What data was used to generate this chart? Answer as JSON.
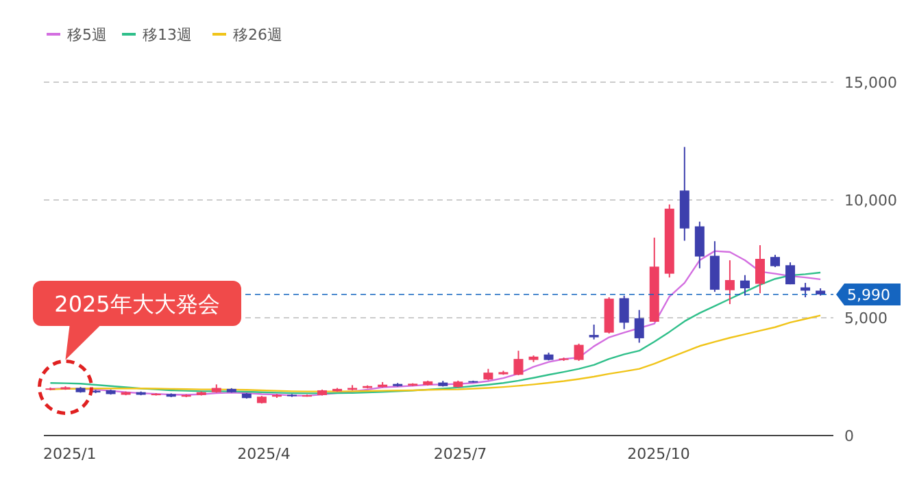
{
  "chart_data": {
    "type": "candlestick",
    "x": [
      "2024-12-23",
      "2024-12-30",
      "2025-01-06",
      "2025-01-13",
      "2025-01-20",
      "2025-01-27",
      "2025-02-03",
      "2025-02-10",
      "2025-02-17",
      "2025-02-24",
      "2025-03-03",
      "2025-03-10",
      "2025-03-17",
      "2025-03-24",
      "2025-03-31",
      "2025-04-07",
      "2025-04-14",
      "2025-04-21",
      "2025-04-28",
      "2025-05-05",
      "2025-05-12",
      "2025-05-19",
      "2025-05-26",
      "2025-06-02",
      "2025-06-09",
      "2025-06-16",
      "2025-06-23",
      "2025-06-30",
      "2025-07-07",
      "2025-07-14",
      "2025-07-21",
      "2025-07-28",
      "2025-08-04",
      "2025-08-11",
      "2025-08-18",
      "2025-08-25",
      "2025-09-01",
      "2025-09-08",
      "2025-09-15",
      "2025-09-22",
      "2025-09-29",
      "2025-10-06",
      "2025-10-13",
      "2025-10-20",
      "2025-10-27",
      "2025-11-03",
      "2025-11-10",
      "2025-11-17",
      "2025-11-24",
      "2025-12-01",
      "2025-12-08",
      "2025-12-15"
    ],
    "ohlc": [
      [
        1950,
        2040,
        1920,
        2000
      ],
      [
        1960,
        2090,
        1940,
        2050
      ],
      [
        2020,
        2060,
        1820,
        1840
      ],
      [
        1900,
        1940,
        1800,
        1830
      ],
      [
        1920,
        1950,
        1740,
        1760
      ],
      [
        1730,
        1870,
        1710,
        1840
      ],
      [
        1840,
        1870,
        1710,
        1730
      ],
      [
        1740,
        1800,
        1700,
        1770
      ],
      [
        1760,
        1790,
        1630,
        1650
      ],
      [
        1650,
        1750,
        1630,
        1720
      ],
      [
        1720,
        1870,
        1700,
        1840
      ],
      [
        1840,
        2170,
        1820,
        2020
      ],
      [
        1980,
        2010,
        1820,
        1840
      ],
      [
        1780,
        1800,
        1570,
        1590
      ],
      [
        1380,
        1680,
        1360,
        1650
      ],
      [
        1650,
        1760,
        1600,
        1720
      ],
      [
        1730,
        1760,
        1640,
        1680
      ],
      [
        1680,
        1740,
        1650,
        1710
      ],
      [
        1720,
        1950,
        1700,
        1920
      ],
      [
        1880,
        2020,
        1860,
        1980
      ],
      [
        1940,
        2140,
        1920,
        2020
      ],
      [
        2020,
        2130,
        2000,
        2100
      ],
      [
        2060,
        2270,
        2040,
        2160
      ],
      [
        2190,
        2230,
        2080,
        2100
      ],
      [
        2120,
        2220,
        2100,
        2200
      ],
      [
        2150,
        2330,
        2120,
        2300
      ],
      [
        2250,
        2320,
        2080,
        2100
      ],
      [
        2060,
        2330,
        2040,
        2290
      ],
      [
        2310,
        2330,
        2250,
        2270
      ],
      [
        2380,
        2830,
        2350,
        2670
      ],
      [
        2600,
        2750,
        2580,
        2690
      ],
      [
        2580,
        3600,
        2560,
        3250
      ],
      [
        3210,
        3400,
        3120,
        3350
      ],
      [
        3440,
        3520,
        3190,
        3210
      ],
      [
        3210,
        3310,
        3170,
        3270
      ],
      [
        3210,
        3900,
        3170,
        3850
      ],
      [
        4270,
        4710,
        4080,
        4170
      ],
      [
        4370,
        5870,
        4330,
        5810
      ],
      [
        5830,
        5940,
        4520,
        4790
      ],
      [
        4980,
        5330,
        3940,
        4130
      ],
      [
        4830,
        8400,
        4830,
        7170
      ],
      [
        6870,
        9810,
        6710,
        9630
      ],
      [
        10400,
        12250,
        8270,
        8790
      ],
      [
        8880,
        9080,
        7100,
        7600
      ],
      [
        7630,
        8250,
        6100,
        6190
      ],
      [
        6170,
        7440,
        5580,
        6600
      ],
      [
        6580,
        6810,
        5940,
        6250
      ],
      [
        6440,
        8080,
        6040,
        7500
      ],
      [
        7580,
        7670,
        7150,
        7190
      ],
      [
        7230,
        7350,
        6420,
        6420
      ],
      [
        6290,
        6480,
        5870,
        6150
      ],
      [
        6150,
        6250,
        5940,
        5990
      ]
    ],
    "colors": [
      "#ee3f62",
      "#ee3f62",
      "#3d3fad",
      "#3d3fad",
      "#3d3fad",
      "#ee3f62",
      "#3d3fad",
      "#ee3f62",
      "#3d3fad",
      "#ee3f62",
      "#ee3f62",
      "#ee3f62",
      "#3d3fad",
      "#3d3fad",
      "#ee3f62",
      "#ee3f62",
      "#3d3fad",
      "#ee3f62",
      "#ee3f62",
      "#ee3f62",
      "#ee3f62",
      "#ee3f62",
      "#ee3f62",
      "#3d3fad",
      "#ee3f62",
      "#ee3f62",
      "#3d3fad",
      "#ee3f62",
      "#3d3fad",
      "#ee3f62",
      "#ee3f62",
      "#ee3f62",
      "#ee3f62",
      "#3d3fad",
      "#ee3f62",
      "#ee3f62",
      "#3d3fad",
      "#ee3f62",
      "#3d3fad",
      "#3d3fad",
      "#ee3f62",
      "#ee3f62",
      "#3d3fad",
      "#3d3fad",
      "#3d3fad",
      "#ee3f62",
      "#3d3fad",
      "#ee3f62",
      "#3d3fad",
      "#3d3fad",
      "#3d3fad",
      "#3d3fad"
    ],
    "series": [
      {
        "name": "移5週",
        "type": "line",
        "color": "#d36ee0",
        "values": [
          1980,
          2000,
          1980,
          1950,
          1900,
          1840,
          1800,
          1770,
          1740,
          1730,
          1750,
          1800,
          1820,
          1800,
          1760,
          1740,
          1700,
          1690,
          1740,
          1810,
          1870,
          1950,
          2050,
          2080,
          2110,
          2160,
          2170,
          2190,
          2230,
          2310,
          2440,
          2630,
          2920,
          3120,
          3250,
          3310,
          3790,
          4170,
          4370,
          4560,
          4750,
          5900,
          6480,
          7440,
          7830,
          7790,
          7440,
          6960,
          6870,
          6770,
          6710,
          6630
        ]
      },
      {
        "name": "移13週",
        "type": "line",
        "color": "#2fbf8a",
        "values": [
          2230,
          2220,
          2200,
          2150,
          2100,
          2050,
          2000,
          1960,
          1920,
          1900,
          1880,
          1880,
          1870,
          1860,
          1840,
          1820,
          1800,
          1790,
          1790,
          1800,
          1810,
          1830,
          1850,
          1880,
          1910,
          1950,
          1990,
          2040,
          2100,
          2160,
          2230,
          2330,
          2450,
          2580,
          2700,
          2830,
          3000,
          3250,
          3450,
          3600,
          3980,
          4400,
          4850,
          5200,
          5500,
          5800,
          6100,
          6400,
          6650,
          6800,
          6850,
          6920
        ]
      },
      {
        "name": "移26週",
        "type": "line",
        "color": "#f0c419",
        "values": [
          1960,
          1980,
          1990,
          2000,
          2000,
          2000,
          2000,
          1990,
          1980,
          1970,
          1960,
          1960,
          1950,
          1940,
          1920,
          1900,
          1880,
          1870,
          1870,
          1870,
          1880,
          1890,
          1900,
          1910,
          1920,
          1940,
          1950,
          1960,
          1990,
          2020,
          2060,
          2110,
          2170,
          2240,
          2310,
          2400,
          2500,
          2620,
          2720,
          2830,
          3050,
          3300,
          3550,
          3800,
          3980,
          4150,
          4300,
          4450,
          4600,
          4800,
          4950,
          5100
        ]
      }
    ],
    "xlim": [
      "2024-12-20",
      "2025-12-21"
    ],
    "xticks": [
      {
        "value": "2025-01-01",
        "label": "2025/1"
      },
      {
        "value": "2025-04-01",
        "label": "2025/4"
      },
      {
        "value": "2025-07-01",
        "label": "2025/7"
      },
      {
        "value": "2025-10-01",
        "label": "2025/10"
      }
    ],
    "ylim": [
      0,
      15000
    ],
    "yticks": [
      {
        "value": 0,
        "label": "0"
      },
      {
        "value": 5000,
        "label": "5,000"
      },
      {
        "value": 10000,
        "label": "10,000"
      },
      {
        "value": 15000,
        "label": "15,000"
      }
    ],
    "grid": "y",
    "legend": "top left",
    "ref_lines": [
      {
        "axis": "y",
        "value": 5990,
        "label": "5,990",
        "color": "#1565c0",
        "line_style": "dashed"
      }
    ],
    "annotations": [
      "2025年大大発会"
    ]
  }
}
